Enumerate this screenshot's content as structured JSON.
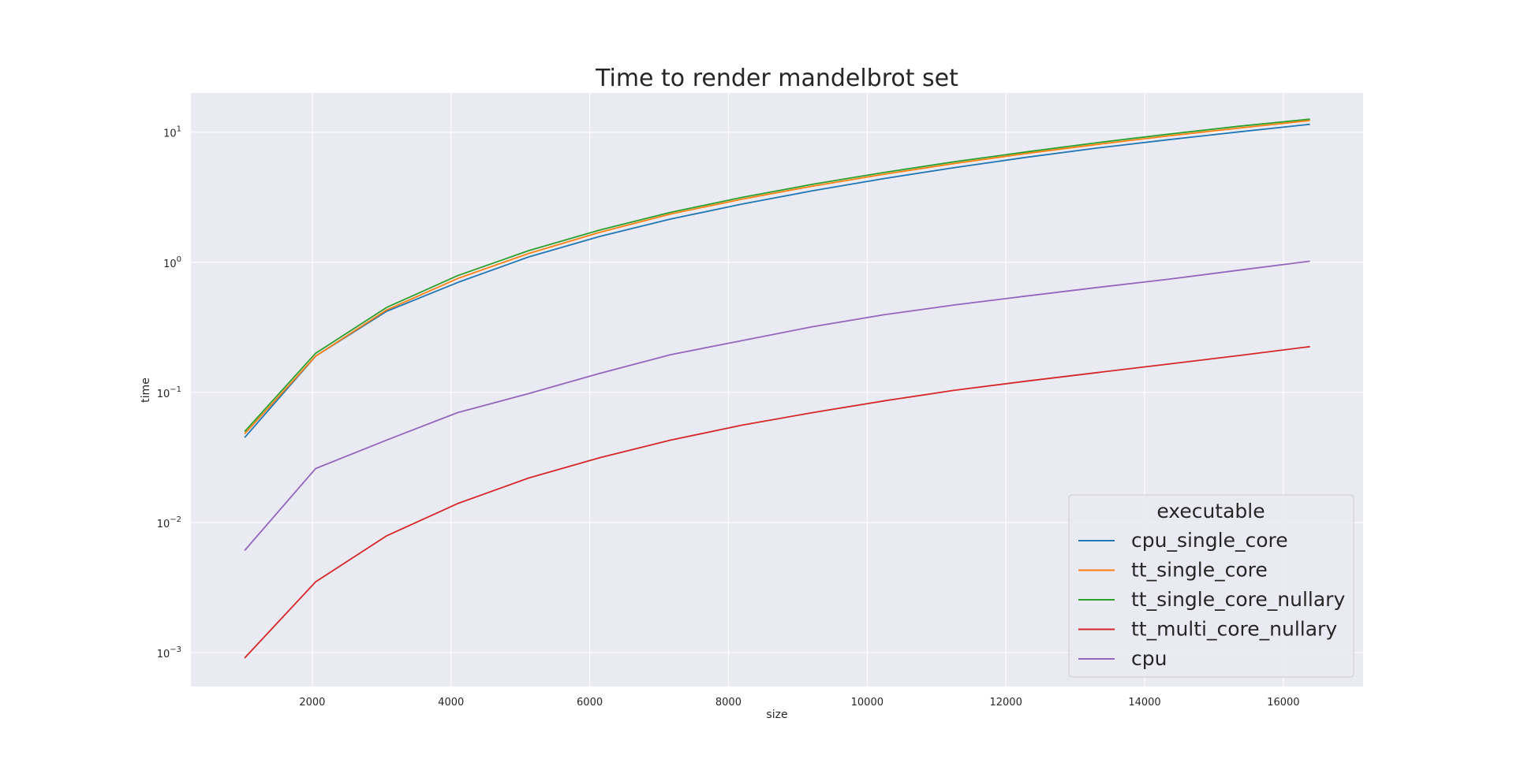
{
  "chart_data": {
    "type": "line",
    "title": "Time to render mandelbrot set",
    "xlabel": "size",
    "ylabel": "time",
    "xlim": [
      250,
      17150
    ],
    "ylim": [
      0.00055,
      20.0
    ],
    "yscale": "log",
    "grid": true,
    "legend_title": "executable",
    "legend_position": "bottom-right",
    "x_ticks": [
      {
        "value": 2000,
        "label": "2000"
      },
      {
        "value": 4000,
        "label": "4000"
      },
      {
        "value": 6000,
        "label": "6000"
      },
      {
        "value": 8000,
        "label": "8000"
      },
      {
        "value": 10000,
        "label": "10000"
      },
      {
        "value": 12000,
        "label": "12000"
      },
      {
        "value": 14000,
        "label": "14000"
      },
      {
        "value": 16000,
        "label": "16000"
      }
    ],
    "y_ticks": [
      {
        "value": 10,
        "base": "10",
        "exp": "1"
      },
      {
        "value": 1,
        "base": "10",
        "exp": "0"
      },
      {
        "value": 0.1,
        "base": "10",
        "exp": "−1"
      },
      {
        "value": 0.01,
        "base": "10",
        "exp": "−2"
      },
      {
        "value": 0.001,
        "base": "10",
        "exp": "−3"
      }
    ],
    "x": [
      1024,
      2048,
      3072,
      4096,
      5120,
      6144,
      7168,
      8192,
      9216,
      10240,
      11264,
      12288,
      13312,
      14336,
      15360,
      16384
    ],
    "series": [
      {
        "name": "cpu_single_core",
        "color": "#1f77b4",
        "values": [
          0.045,
          0.19,
          0.42,
          0.7,
          1.1,
          1.58,
          2.15,
          2.8,
          3.55,
          4.4,
          5.35,
          6.4,
          7.55,
          8.75,
          10.05,
          11.5
        ]
      },
      {
        "name": "tt_single_core",
        "color": "#ff7f0e",
        "values": [
          0.048,
          0.19,
          0.43,
          0.75,
          1.17,
          1.7,
          2.35,
          3.05,
          3.85,
          4.75,
          5.75,
          6.85,
          8.05,
          9.35,
          10.75,
          12.3
        ]
      },
      {
        "name": "tt_single_core_nullary",
        "color": "#2ca02c",
        "values": [
          0.05,
          0.2,
          0.45,
          0.79,
          1.23,
          1.77,
          2.42,
          3.15,
          3.98,
          4.9,
          5.93,
          7.05,
          8.3,
          9.65,
          11.1,
          12.6
        ]
      },
      {
        "name": "tt_multi_core_nullary",
        "color": "#d62728",
        "values": [
          0.00091,
          0.0035,
          0.0079,
          0.014,
          0.022,
          0.0315,
          0.043,
          0.056,
          0.07,
          0.086,
          0.104,
          0.122,
          0.142,
          0.165,
          0.192,
          0.225
        ]
      },
      {
        "name": "cpu",
        "color": "#9467bd",
        "values": [
          0.0061,
          0.026,
          0.043,
          0.07,
          0.098,
          0.14,
          0.195,
          0.25,
          0.32,
          0.395,
          0.47,
          0.55,
          0.64,
          0.74,
          0.87,
          1.02
        ]
      }
    ]
  }
}
